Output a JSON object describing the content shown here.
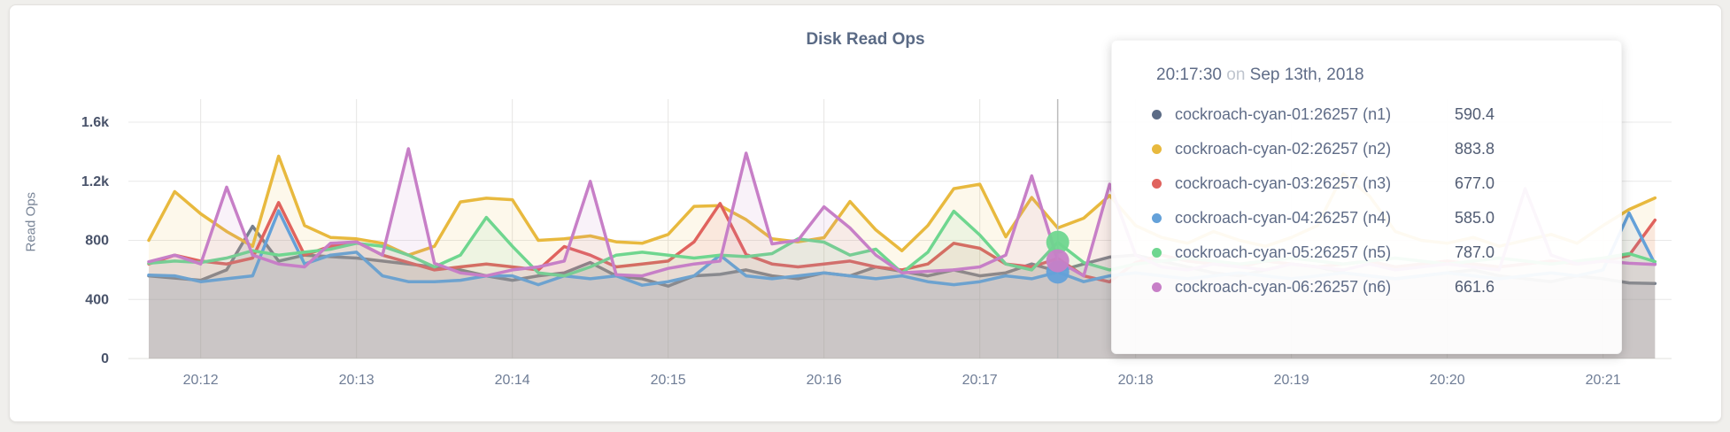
{
  "page": {
    "background": "#F0EFEC"
  },
  "card": {
    "background": "#FFFFFF"
  },
  "chart_data": {
    "type": "line",
    "title": "Disk Read Ops",
    "xlabel": "",
    "ylabel": "Read Ops",
    "ylim": [
      0,
      1600
    ],
    "grid": true,
    "legend_position": "none",
    "x_start_time": "20:11:40",
    "x_step_seconds": 10,
    "x_ticks": [
      {
        "label": "20:12",
        "index": 2
      },
      {
        "label": "20:13",
        "index": 8
      },
      {
        "label": "20:14",
        "index": 14
      },
      {
        "label": "20:15",
        "index": 20
      },
      {
        "label": "20:16",
        "index": 26
      },
      {
        "label": "20:17",
        "index": 32
      },
      {
        "label": "20:18",
        "index": 38
      },
      {
        "label": "20:19",
        "index": 44
      },
      {
        "label": "20:20",
        "index": 50
      },
      {
        "label": "20:21",
        "index": 56
      }
    ],
    "y_ticks": [
      {
        "label": "0",
        "value": 0
      },
      {
        "label": "400",
        "value": 400
      },
      {
        "label": "800",
        "value": 800
      },
      {
        "label": "1.2k",
        "value": 1200
      },
      {
        "label": "1.6k",
        "value": 1600
      }
    ],
    "series": [
      {
        "name": "cockroach-cyan-01:26257 (n1)",
        "color": "#76808F",
        "fill_opacity": 0.18,
        "values": [
          560,
          545,
          530,
          600,
          895,
          660,
          700,
          690,
          680,
          660,
          640,
          620,
          600,
          560,
          530,
          560,
          580,
          650,
          560,
          540,
          490,
          560,
          570,
          600,
          560,
          540,
          580,
          560,
          620,
          590,
          560,
          600,
          560,
          580,
          640,
          590.4,
          640,
          687,
          700,
          660,
          620,
          580,
          560,
          600,
          640,
          620,
          580,
          560,
          540,
          560,
          580,
          600,
          560,
          540,
          520,
          560,
          540,
          512,
          508
        ]
      },
      {
        "name": "cockroach-cyan-02:26257 (n2)",
        "color": "#E8B93E",
        "fill_opacity": 0.1,
        "values": [
          800,
          1130,
          980,
          860,
          760,
          1370,
          900,
          820,
          810,
          780,
          700,
          760,
          1060,
          1085,
          1075,
          800,
          810,
          830,
          790,
          780,
          840,
          1030,
          1035,
          940,
          810,
          790,
          818,
          1063,
          870,
          730,
          900,
          1150,
          1180,
          824,
          1090,
          883.8,
          950,
          1104,
          900,
          820,
          780,
          860,
          800,
          760,
          820,
          900,
          1250,
          1100,
          860,
          800,
          780,
          820,
          760,
          800,
          840,
          780,
          900,
          1009,
          1087
        ]
      },
      {
        "name": "cockroach-cyan-03:26257 (n3)",
        "color": "#E0635E",
        "fill_opacity": 0.1,
        "values": [
          640,
          700,
          660,
          640,
          680,
          1056,
          700,
          760,
          790,
          700,
          650,
          600,
          620,
          640,
          620,
          600,
          758,
          700,
          620,
          640,
          660,
          790,
          1050,
          704,
          640,
          620,
          640,
          660,
          620,
          600,
          640,
          780,
          746,
          640,
          620,
          677,
          560,
          519,
          650,
          700,
          660,
          640,
          620,
          660,
          640,
          620,
          640,
          660,
          620,
          640,
          660,
          640,
          620,
          640,
          660,
          640,
          660,
          698,
          937
        ]
      },
      {
        "name": "cockroach-cyan-04:26257 (n4)",
        "color": "#64A1D9",
        "fill_opacity": 0.1,
        "values": [
          565,
          560,
          520,
          540,
          560,
          1000,
          640,
          700,
          720,
          560,
          520,
          520,
          530,
          560,
          560,
          500,
          560,
          540,
          560,
          496,
          520,
          560,
          700,
          560,
          540,
          560,
          580,
          560,
          540,
          560,
          520,
          500,
          520,
          560,
          540,
          585,
          520,
          560,
          580,
          560,
          540,
          560,
          580,
          560,
          540,
          560,
          580,
          560,
          540,
          560,
          580,
          560,
          540,
          560,
          580,
          560,
          600,
          985,
          640
        ]
      },
      {
        "name": "cockroach-cyan-05:26257 (n5)",
        "color": "#6FD68F",
        "fill_opacity": 0.1,
        "values": [
          645,
          660,
          650,
          680,
          730,
          700,
          720,
          740,
          780,
          760,
          700,
          620,
          700,
          955,
          760,
          580,
          560,
          620,
          700,
          720,
          700,
          680,
          700,
          690,
          710,
          810,
          788,
          700,
          740,
          580,
          720,
          997,
          836,
          640,
          600,
          787,
          650,
          600,
          640,
          660,
          680,
          660,
          640,
          660,
          680,
          660,
          640,
          660,
          680,
          660,
          640,
          660,
          680,
          660,
          640,
          660,
          680,
          710,
          656
        ]
      },
      {
        "name": "cockroach-cyan-06:26257 (n6)",
        "color": "#C77FC7",
        "fill_opacity": 0.1,
        "values": [
          655,
          700,
          640,
          1160,
          700,
          640,
          620,
          780,
          790,
          700,
          1420,
          645,
          580,
          560,
          600,
          620,
          660,
          1200,
          567,
          560,
          610,
          640,
          660,
          1390,
          776,
          800,
          1027,
          884,
          700,
          580,
          590,
          600,
          620,
          700,
          1236,
          661.6,
          560,
          1180,
          700,
          620,
          600,
          640,
          620,
          600,
          640,
          620,
          600,
          640,
          600,
          620,
          640,
          620,
          600,
          1150,
          700,
          640,
          660,
          645,
          637
        ]
      }
    ]
  },
  "hover": {
    "time_index": 35,
    "crosshair_color": "#BBBBBB",
    "dots": [
      {
        "color": "#64A1D9",
        "value": 585.0
      },
      {
        "color": "#6FD68F",
        "value": 787.0
      },
      {
        "color": "#C77FC7",
        "value": 661.6
      }
    ],
    "dot_radius": 13
  },
  "tooltip": {
    "time": "20:17:30",
    "conjunction": "on",
    "date": "Sep 13th, 2018",
    "rows": [
      {
        "label": "cockroach-cyan-01:26257 (n1)",
        "value": "590.4",
        "color": "#5B6B85"
      },
      {
        "label": "cockroach-cyan-02:26257 (n2)",
        "value": "883.8",
        "color": "#E8B93E"
      },
      {
        "label": "cockroach-cyan-03:26257 (n3)",
        "value": "677.0",
        "color": "#E0635E"
      },
      {
        "label": "cockroach-cyan-04:26257 (n4)",
        "value": "585.0",
        "color": "#64A1D9"
      },
      {
        "label": "cockroach-cyan-05:26257 (n5)",
        "value": "787.0",
        "color": "#6FD68F"
      },
      {
        "label": "cockroach-cyan-06:26257 (n6)",
        "value": "661.6",
        "color": "#C77FC7"
      }
    ]
  }
}
